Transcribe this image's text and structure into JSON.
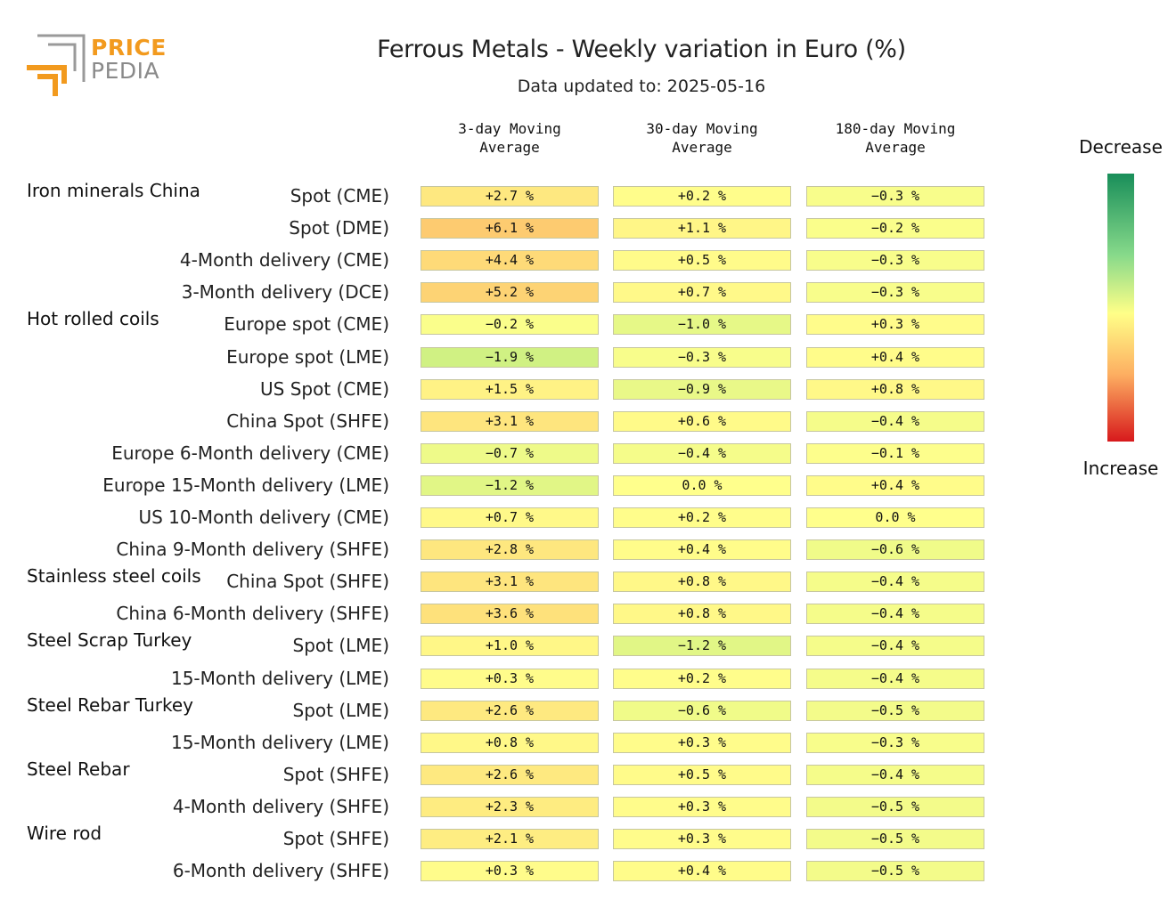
{
  "logo": {
    "line1": "PRICE",
    "line2": "PEDIA"
  },
  "title": "Ferrous Metals - Weekly variation in Euro (%)",
  "subtitle": "Data updated to: 2025-05-16",
  "legend": {
    "top": "Decrease",
    "bottom": "Increase"
  },
  "colors": {
    "decrease": "#1a8f5a",
    "neutral": "#ffff88",
    "increase": "#d7191c",
    "orange": "#fdae61"
  },
  "chart_data": {
    "type": "heatmap",
    "title": "Ferrous Metals - Weekly variation in Euro (%)",
    "subtitle": "Data updated to: 2025-05-16",
    "columns": [
      "3-day Moving\nAverage",
      "30-day Moving\nAverage",
      "180-day Moving\nAverage"
    ],
    "unit": "%",
    "color_scale": {
      "low_label": "Increase",
      "high_label": "Decrease"
    },
    "rows": [
      {
        "group": "Iron minerals China",
        "label": "Spot (CME)",
        "values": [
          2.7,
          0.2,
          -0.3
        ]
      },
      {
        "group": "",
        "label": "Spot (DME)",
        "values": [
          6.1,
          1.1,
          -0.2
        ]
      },
      {
        "group": "",
        "label": "4-Month delivery (CME)",
        "values": [
          4.4,
          0.5,
          -0.3
        ]
      },
      {
        "group": "",
        "label": "3-Month delivery (DCE)",
        "values": [
          5.2,
          0.7,
          -0.3
        ]
      },
      {
        "group": "Hot rolled coils",
        "label": "Europe spot (CME)",
        "values": [
          -0.2,
          -1.0,
          0.3
        ]
      },
      {
        "group": "",
        "label": "Europe spot (LME)",
        "values": [
          -1.9,
          -0.3,
          0.4
        ]
      },
      {
        "group": "",
        "label": "US Spot (CME)",
        "values": [
          1.5,
          -0.9,
          0.8
        ]
      },
      {
        "group": "",
        "label": "China Spot (SHFE)",
        "values": [
          3.1,
          0.6,
          -0.4
        ]
      },
      {
        "group": "",
        "label": "Europe 6-Month delivery (CME)",
        "values": [
          -0.7,
          -0.4,
          -0.1
        ]
      },
      {
        "group": "",
        "label": "Europe 15-Month delivery (LME)",
        "values": [
          -1.2,
          0.0,
          0.4
        ]
      },
      {
        "group": "",
        "label": "US 10-Month delivery (CME)",
        "values": [
          0.7,
          0.2,
          0.0
        ]
      },
      {
        "group": "",
        "label": "China 9-Month delivery (SHFE)",
        "values": [
          2.8,
          0.4,
          -0.6
        ]
      },
      {
        "group": "Stainless steel coils",
        "label": "China Spot (SHFE)",
        "values": [
          3.1,
          0.8,
          -0.4
        ]
      },
      {
        "group": "",
        "label": "China 6-Month delivery (SHFE)",
        "values": [
          3.6,
          0.8,
          -0.4
        ]
      },
      {
        "group": "Steel Scrap Turkey",
        "label": "Spot (LME)",
        "values": [
          1.0,
          -1.2,
          -0.4
        ]
      },
      {
        "group": "",
        "label": "15-Month delivery (LME)",
        "values": [
          0.3,
          0.2,
          -0.4
        ]
      },
      {
        "group": "Steel Rebar Turkey",
        "label": "Spot (LME)",
        "values": [
          2.6,
          -0.6,
          -0.5
        ]
      },
      {
        "group": "",
        "label": "15-Month delivery (LME)",
        "values": [
          0.8,
          0.3,
          -0.3
        ]
      },
      {
        "group": "Steel Rebar",
        "label": "Spot (SHFE)",
        "values": [
          2.6,
          0.5,
          -0.4
        ]
      },
      {
        "group": "",
        "label": "4-Month delivery (SHFE)",
        "values": [
          2.3,
          0.3,
          -0.5
        ]
      },
      {
        "group": "Wire rod",
        "label": "Spot (SHFE)",
        "values": [
          2.1,
          0.3,
          -0.5
        ]
      },
      {
        "group": "",
        "label": "6-Month delivery (SHFE)",
        "values": [
          0.3,
          0.4,
          -0.5
        ]
      }
    ]
  }
}
